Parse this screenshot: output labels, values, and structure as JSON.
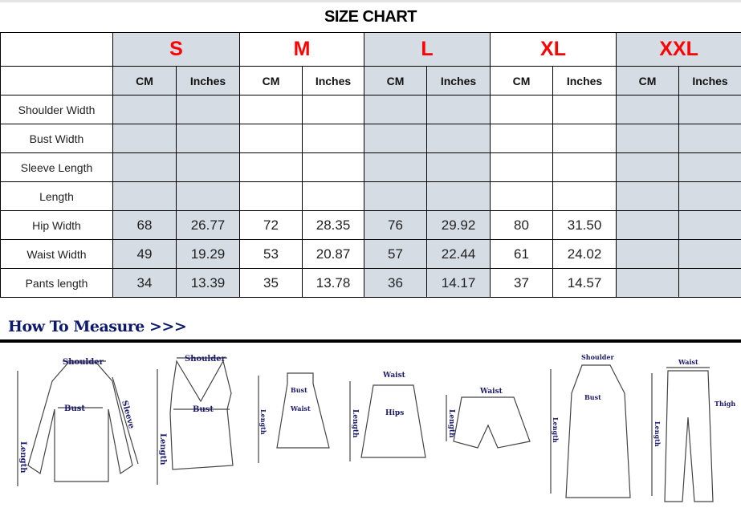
{
  "title": "SIZE CHART",
  "sizes": [
    "S",
    "M",
    "L",
    "XL",
    "XXL"
  ],
  "units": [
    "CM",
    "Inches"
  ],
  "rows": [
    {
      "label": "Shoulder Width",
      "values": [
        "",
        "",
        "",
        "",
        "",
        "",
        "",
        "",
        "",
        ""
      ]
    },
    {
      "label": "Bust Width",
      "values": [
        "",
        "",
        "",
        "",
        "",
        "",
        "",
        "",
        "",
        ""
      ]
    },
    {
      "label": "Sleeve Length",
      "values": [
        "",
        "",
        "",
        "",
        "",
        "",
        "",
        "",
        "",
        ""
      ]
    },
    {
      "label": "Length",
      "values": [
        "",
        "",
        "",
        "",
        "",
        "",
        "",
        "",
        "",
        ""
      ]
    },
    {
      "label": "Hip Width",
      "values": [
        "68",
        "26.77",
        "72",
        "28.35",
        "76",
        "29.92",
        "80",
        "31.50",
        "",
        ""
      ]
    },
    {
      "label": "Waist Width",
      "values": [
        "49",
        "19.29",
        "53",
        "20.87",
        "57",
        "22.44",
        "61",
        "24.02",
        "",
        ""
      ]
    },
    {
      "label": "Pants length",
      "values": [
        "34",
        "13.39",
        "35",
        "13.78",
        "36",
        "14.17",
        "37",
        "14.57",
        "",
        ""
      ]
    }
  ],
  "colors": {
    "size_label": "#ff0000",
    "shade": "#d6dce4",
    "heading": "#0d1a6b"
  },
  "how_to_measure": {
    "heading": "How To Measure >>>",
    "labels": {
      "shoulder": "Shoulder",
      "bust": "Bust",
      "sleeve": "Sleeve",
      "length": "Length",
      "waist": "Waist",
      "hips": "Hips",
      "thigh": "Thigh"
    }
  }
}
